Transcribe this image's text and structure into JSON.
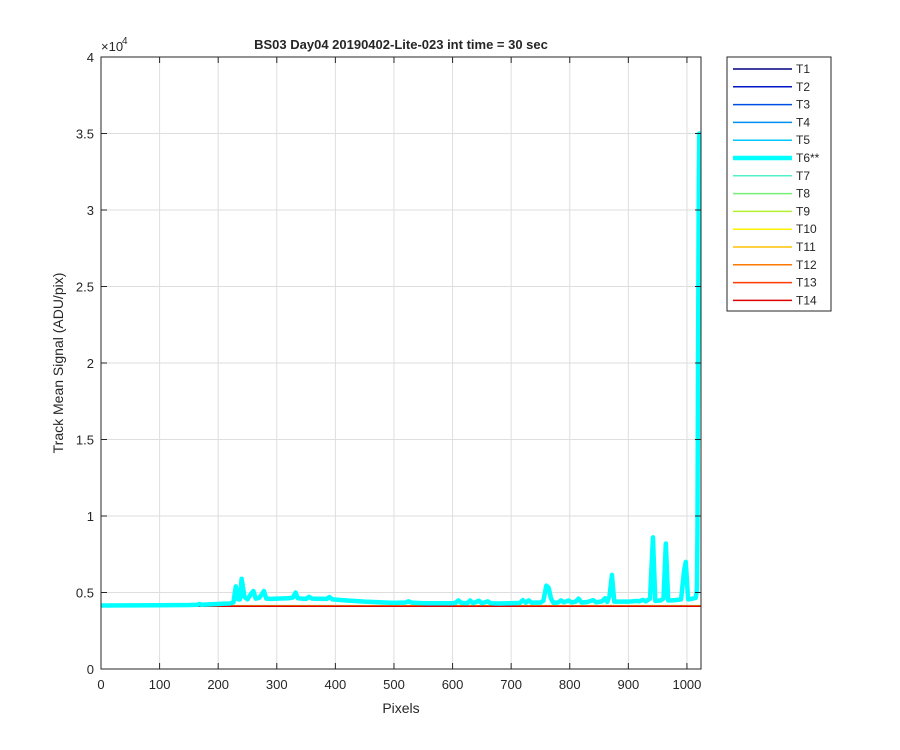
{
  "chart_data": {
    "type": "line",
    "title": "BS03 Day04 20190402-Lite-023 int time = 30 sec",
    "xlabel": "Pixels",
    "ylabel": "Track Mean Signal (ADU/pix)",
    "xlim": [
      0,
      1024
    ],
    "ylim": [
      0,
      40000
    ],
    "x_ticks": [
      0,
      100,
      200,
      300,
      400,
      500,
      600,
      700,
      800,
      900,
      1000
    ],
    "y_ticks": [
      0,
      5000,
      10000,
      15000,
      20000,
      25000,
      30000,
      35000,
      40000
    ],
    "y_tick_labels": [
      "0",
      "0.5",
      "1",
      "1.5",
      "2",
      "2.5",
      "3",
      "3.5",
      "4"
    ],
    "y_exponent_label": "×10",
    "y_exponent_power": "4",
    "grid": true,
    "legend_position": "outside-right",
    "series": [
      {
        "name": "T1",
        "color": "#000080",
        "width": 1.5,
        "baseline": 4110
      },
      {
        "name": "T2",
        "color": "#0014c8",
        "width": 1.5,
        "baseline": 4115
      },
      {
        "name": "T3",
        "color": "#0050e6",
        "width": 1.5,
        "baseline": 4120
      },
      {
        "name": "T4",
        "color": "#0090f0",
        "width": 1.5,
        "baseline": 4125
      },
      {
        "name": "T5",
        "color": "#00c8ff",
        "width": 1.5,
        "baseline": 4130
      },
      {
        "name": "T6**",
        "color": "#00ffff",
        "width": 4.5,
        "baseline": 4150,
        "points": [
          [
            0,
            4150
          ],
          [
            50,
            4160
          ],
          [
            100,
            4170
          ],
          [
            150,
            4180
          ],
          [
            165,
            4200
          ],
          [
            168,
            4250
          ],
          [
            171,
            4200
          ],
          [
            190,
            4230
          ],
          [
            200,
            4250
          ],
          [
            210,
            4270
          ],
          [
            220,
            4280
          ],
          [
            226,
            4350
          ],
          [
            230,
            5400
          ],
          [
            234,
            4550
          ],
          [
            237,
            4550
          ],
          [
            240,
            5900
          ],
          [
            245,
            4700
          ],
          [
            250,
            4550
          ],
          [
            256,
            4900
          ],
          [
            260,
            5100
          ],
          [
            264,
            4600
          ],
          [
            270,
            4650
          ],
          [
            274,
            4850
          ],
          [
            278,
            5100
          ],
          [
            282,
            4600
          ],
          [
            290,
            4580
          ],
          [
            300,
            4600
          ],
          [
            320,
            4620
          ],
          [
            328,
            4680
          ],
          [
            332,
            5000
          ],
          [
            336,
            4620
          ],
          [
            350,
            4580
          ],
          [
            355,
            4720
          ],
          [
            360,
            4600
          ],
          [
            385,
            4580
          ],
          [
            390,
            4700
          ],
          [
            395,
            4550
          ],
          [
            420,
            4480
          ],
          [
            450,
            4400
          ],
          [
            500,
            4320
          ],
          [
            520,
            4350
          ],
          [
            525,
            4420
          ],
          [
            530,
            4340
          ],
          [
            550,
            4300
          ],
          [
            600,
            4300
          ],
          [
            605,
            4320
          ],
          [
            610,
            4480
          ],
          [
            615,
            4320
          ],
          [
            625,
            4300
          ],
          [
            630,
            4480
          ],
          [
            635,
            4300
          ],
          [
            645,
            4460
          ],
          [
            650,
            4300
          ],
          [
            660,
            4420
          ],
          [
            665,
            4300
          ],
          [
            680,
            4280
          ],
          [
            700,
            4300
          ],
          [
            715,
            4320
          ],
          [
            720,
            4500
          ],
          [
            725,
            4330
          ],
          [
            730,
            4480
          ],
          [
            735,
            4330
          ],
          [
            745,
            4350
          ],
          [
            750,
            4340
          ],
          [
            755,
            4460
          ],
          [
            760,
            5450
          ],
          [
            764,
            5300
          ],
          [
            768,
            4600
          ],
          [
            772,
            4330
          ],
          [
            780,
            4350
          ],
          [
            785,
            4480
          ],
          [
            790,
            4360
          ],
          [
            798,
            4480
          ],
          [
            803,
            4350
          ],
          [
            810,
            4400
          ],
          [
            815,
            4600
          ],
          [
            820,
            4350
          ],
          [
            830,
            4380
          ],
          [
            840,
            4500
          ],
          [
            845,
            4360
          ],
          [
            855,
            4420
          ],
          [
            860,
            4620
          ],
          [
            864,
            4380
          ],
          [
            868,
            4800
          ],
          [
            872,
            6150
          ],
          [
            876,
            4400
          ],
          [
            885,
            4400
          ],
          [
            900,
            4400
          ],
          [
            915,
            4450
          ],
          [
            918,
            4420
          ],
          [
            925,
            4520
          ],
          [
            930,
            4420
          ],
          [
            937,
            4600
          ],
          [
            942,
            8600
          ],
          [
            946,
            4450
          ],
          [
            955,
            4480
          ],
          [
            960,
            4600
          ],
          [
            964,
            8200
          ],
          [
            968,
            4480
          ],
          [
            980,
            4500
          ],
          [
            990,
            4550
          ],
          [
            995,
            6400
          ],
          [
            998,
            7000
          ],
          [
            1002,
            4550
          ],
          [
            1010,
            4600
          ],
          [
            1015,
            4650
          ],
          [
            1017,
            5200
          ],
          [
            1018,
            9000
          ],
          [
            1019,
            20000
          ],
          [
            1020,
            30000
          ],
          [
            1021,
            35000
          ],
          [
            1022,
            32000
          ],
          [
            1023,
            23000
          ]
        ]
      },
      {
        "name": "T7",
        "color": "#50f0c8",
        "width": 1.5,
        "baseline": 4140
      },
      {
        "name": "T8",
        "color": "#78f078",
        "width": 1.5,
        "baseline": 4135
      },
      {
        "name": "T9",
        "color": "#b4f032",
        "width": 1.5,
        "baseline": 4125
      },
      {
        "name": "T10",
        "color": "#fff000",
        "width": 1.5,
        "baseline": 4120
      },
      {
        "name": "T11",
        "color": "#ffc000",
        "width": 1.5,
        "baseline": 4115
      },
      {
        "name": "T12",
        "color": "#ff7800",
        "width": 1.5,
        "baseline": 4110
      },
      {
        "name": "T13",
        "color": "#ff3c00",
        "width": 1.5,
        "baseline": 4105
      },
      {
        "name": "T14",
        "color": "#dc0000",
        "width": 1.5,
        "baseline": 4100
      }
    ]
  }
}
